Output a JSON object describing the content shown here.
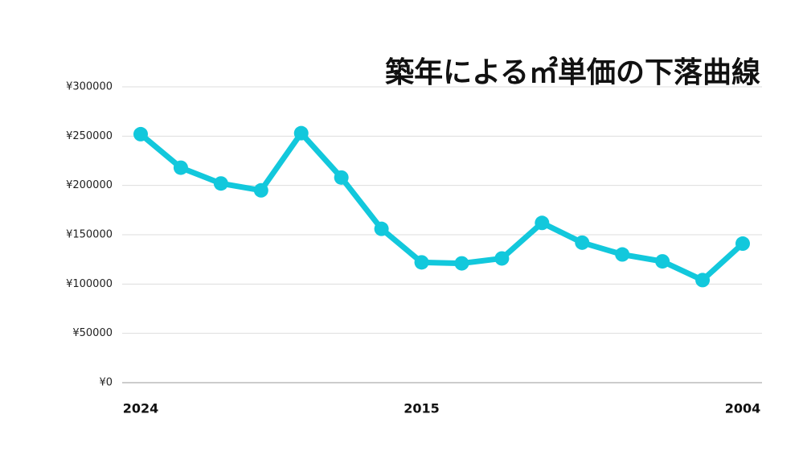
{
  "chart_data": {
    "type": "line",
    "title": "築年による㎡単価の下落曲線",
    "categories": [
      "2024",
      null,
      null,
      null,
      null,
      null,
      null,
      "2015",
      null,
      null,
      null,
      null,
      null,
      null,
      null,
      "2004"
    ],
    "series": [
      {
        "color": "#12c8dc",
        "values": [
          252000,
          218000,
          202000,
          195000,
          253000,
          208000,
          156000,
          122000,
          121000,
          126000,
          162000,
          142000,
          130000,
          123000,
          104000,
          141000
        ]
      }
    ],
    "ylim": [
      0,
      300000
    ],
    "yticks": [
      {
        "value": 0,
        "label": "¥0"
      },
      {
        "value": 50000,
        "label": "¥50000"
      },
      {
        "value": 100000,
        "label": "¥100000"
      },
      {
        "value": 150000,
        "label": "¥150000"
      },
      {
        "value": 200000,
        "label": "¥200000"
      },
      {
        "value": 250000,
        "label": "¥250000"
      },
      {
        "value": 300000,
        "label": "¥300000"
      }
    ],
    "grid": true
  }
}
